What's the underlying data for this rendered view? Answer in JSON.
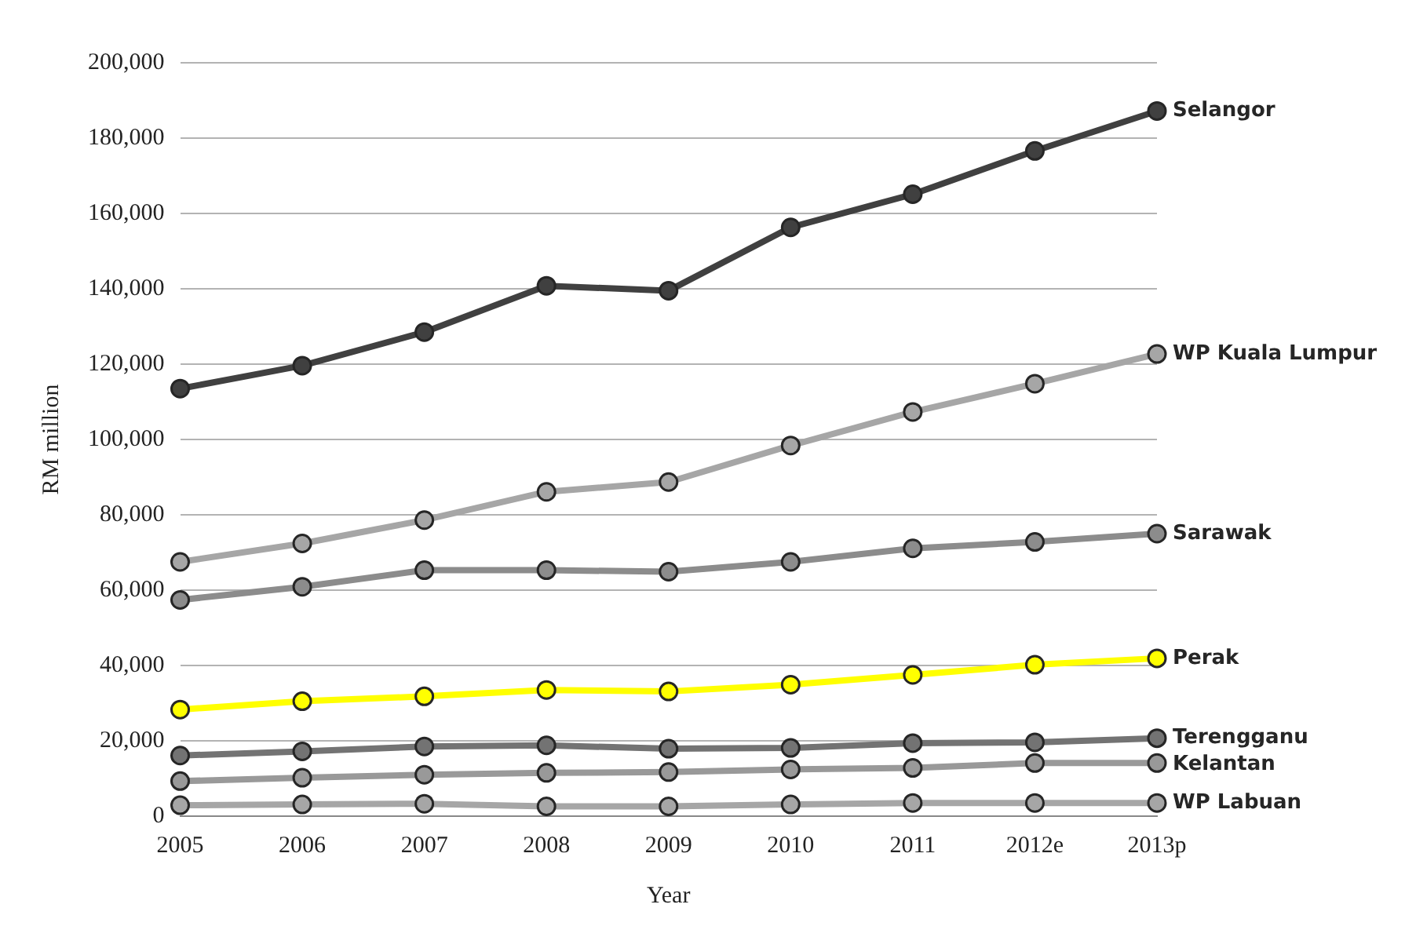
{
  "chart_data": {
    "type": "line",
    "xlabel": "Year",
    "ylabel": "RM million",
    "categories": [
      "2005",
      "2006",
      "2007",
      "2008",
      "2009",
      "2010",
      "2011",
      "2012e",
      "2013p"
    ],
    "series": [
      {
        "name": "Selangor",
        "color": "#404040",
        "values": [
          113500,
          119600,
          128500,
          140800,
          139500,
          156300,
          165100,
          176600,
          187200
        ]
      },
      {
        "name": "WP Kuala Lumpur",
        "color": "#a6a6a6",
        "values": [
          67500,
          72400,
          78600,
          86100,
          88700,
          98400,
          107300,
          114800,
          122700
        ]
      },
      {
        "name": "Sarawak",
        "color": "#8c8c8c",
        "values": [
          57400,
          60900,
          65300,
          65300,
          64900,
          67500,
          71100,
          72800,
          75000
        ]
      },
      {
        "name": "Perak",
        "color": "#ffff00",
        "values": [
          28300,
          30500,
          31800,
          33500,
          33100,
          34900,
          37500,
          40200,
          41900
        ]
      },
      {
        "name": "Terengganu",
        "color": "#737373",
        "values": [
          16100,
          17200,
          18500,
          18800,
          17900,
          18100,
          19400,
          19600,
          20700
        ]
      },
      {
        "name": "Kelantan",
        "color": "#999999",
        "values": [
          9300,
          10200,
          11000,
          11500,
          11700,
          12400,
          12800,
          14100,
          14100
        ]
      },
      {
        "name": "WP Labuan",
        "color": "#a6a6a6",
        "values": [
          2900,
          3100,
          3300,
          2600,
          2600,
          3100,
          3500,
          3500,
          3500
        ]
      }
    ],
    "ylim": [
      0,
      200000
    ],
    "yticks": [
      {
        "value": 0,
        "label": "0"
      },
      {
        "value": 20000,
        "label": "20,000"
      },
      {
        "value": 40000,
        "label": "40,000"
      },
      {
        "value": 60000,
        "label": "60,000"
      },
      {
        "value": 80000,
        "label": "80,000"
      },
      {
        "value": 100000,
        "label": "100,000"
      },
      {
        "value": 120000,
        "label": "120,000"
      },
      {
        "value": 140000,
        "label": "140,000"
      },
      {
        "value": 160000,
        "label": "160,000"
      },
      {
        "value": 180000,
        "label": "180,000"
      },
      {
        "value": 200000,
        "label": "200,000"
      }
    ],
    "grid": "y",
    "legend": false,
    "marker": "circle",
    "line_style": "solid"
  }
}
